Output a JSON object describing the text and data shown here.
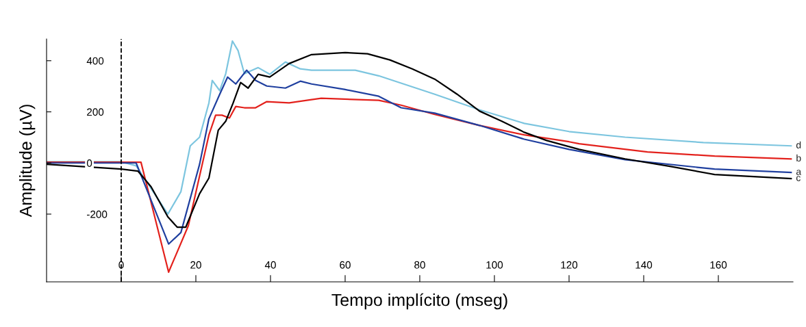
{
  "chart_data": {
    "type": "line",
    "xlabel": "Tempo implícito (mseg)",
    "ylabel": "Amplitude (µV)",
    "xlim": [
      -20,
      180
    ],
    "ylim": [
      -465,
      485
    ],
    "xticks": [
      0,
      20,
      40,
      60,
      80,
      100,
      120,
      140,
      160
    ],
    "yticks": [
      -200,
      0,
      200,
      400
    ],
    "grid": false,
    "legend": false,
    "marker": "none",
    "line_style": "solid",
    "ref_lines": [
      {
        "axis": "x",
        "value": 0,
        "color": "#000000",
        "line_style": "dashed"
      }
    ],
    "series": [
      {
        "name": "d",
        "color": "#7cc5df",
        "x": [
          -20,
          0,
          4,
          12.5,
          16,
          18.5,
          21,
          23.5,
          24.4,
          26.4,
          28,
          29.8,
          31.3,
          33,
          36.7,
          39.8,
          44,
          48,
          51,
          62.7,
          69,
          84,
          96,
          108,
          120,
          135,
          156,
          179.5
        ],
        "values": [
          5,
          5,
          -11,
          -200,
          -112,
          67,
          101,
          235,
          323,
          283,
          349,
          477,
          440,
          349,
          373,
          347,
          395,
          368,
          363,
          363,
          341,
          269,
          208,
          155,
          123,
          101,
          80,
          67
        ]
      },
      {
        "name": "b",
        "color": "#e3211c",
        "x": [
          -20,
          0,
          5.3,
          12.7,
          18,
          21,
          23.5,
          25.3,
          27,
          29,
          30.7,
          33,
          36,
          39,
          45,
          51,
          53.6,
          69,
          75,
          84,
          96,
          108,
          120,
          122.7,
          141,
          159,
          179.5
        ],
        "values": [
          3,
          3,
          3,
          -427,
          -245,
          -51,
          110,
          187,
          187,
          176,
          221,
          216,
          216,
          240,
          235,
          248,
          253,
          245,
          226,
          190,
          147,
          110,
          83,
          75,
          43,
          27,
          16
        ]
      },
      {
        "name": "a",
        "color": "#1f3f9f",
        "x": [
          -20,
          0,
          4,
          12.7,
          16,
          21,
          23.5,
          26.4,
          28.5,
          30.7,
          33.6,
          36,
          39,
          44,
          48,
          51,
          59.8,
          69,
          75,
          84,
          96,
          108,
          120,
          135,
          159,
          179.5
        ],
        "values": [
          0,
          0,
          0,
          -317,
          -272,
          -5,
          173,
          269,
          336,
          309,
          363,
          323,
          301,
          293,
          320,
          309,
          288,
          261,
          216,
          195,
          147,
          93,
          53,
          13,
          -24,
          -37
        ]
      },
      {
        "name": "c",
        "color": "#000000",
        "x": [
          -20,
          0,
          4.5,
          8,
          12.5,
          15,
          17.3,
          21,
          23.5,
          26,
          28,
          30,
          32,
          34,
          36.7,
          39.8,
          45,
          51,
          60,
          66,
          72,
          78,
          84,
          90,
          96,
          102,
          108,
          114,
          122.7,
          135,
          147,
          159,
          179.5
        ],
        "values": [
          -5,
          -24,
          -32,
          -93,
          -211,
          -251,
          -251,
          -120,
          -59,
          128,
          163,
          235,
          315,
          293,
          347,
          336,
          389,
          424,
          432,
          427,
          403,
          368,
          328,
          269,
          203,
          163,
          120,
          88,
          53,
          16,
          -13,
          -45,
          -61
        ]
      }
    ]
  }
}
